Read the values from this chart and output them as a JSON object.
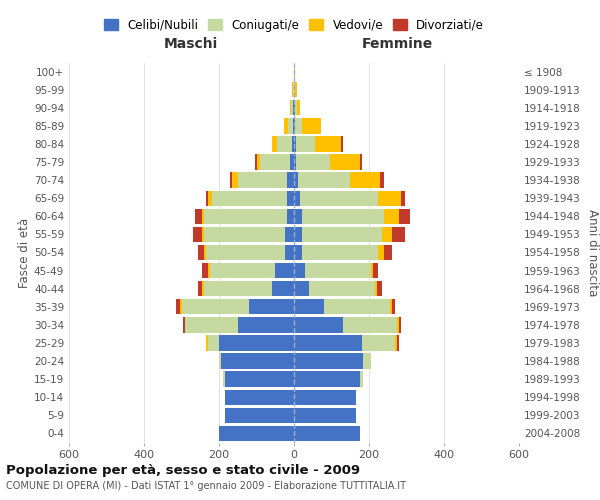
{
  "age_groups": [
    "0-4",
    "5-9",
    "10-14",
    "15-19",
    "20-24",
    "25-29",
    "30-34",
    "35-39",
    "40-44",
    "45-49",
    "50-54",
    "55-59",
    "60-64",
    "65-69",
    "70-74",
    "75-79",
    "80-84",
    "85-89",
    "90-94",
    "95-99",
    "100+"
  ],
  "birth_years": [
    "2004-2008",
    "1999-2003",
    "1994-1998",
    "1989-1993",
    "1984-1988",
    "1979-1983",
    "1974-1978",
    "1969-1973",
    "1964-1968",
    "1959-1963",
    "1954-1958",
    "1949-1953",
    "1944-1948",
    "1939-1943",
    "1934-1938",
    "1929-1933",
    "1924-1928",
    "1919-1923",
    "1914-1918",
    "1909-1913",
    "≤ 1908"
  ],
  "colors": {
    "celibe": "#4472c4",
    "coniugato": "#c5d9a0",
    "vedovo": "#ffc000",
    "divorziato": "#c0392b"
  },
  "maschi": {
    "celibe": [
      200,
      185,
      185,
      185,
      195,
      200,
      150,
      120,
      60,
      50,
      25,
      25,
      20,
      20,
      20,
      10,
      5,
      2,
      2,
      1,
      0
    ],
    "coniugato": [
      0,
      0,
      0,
      5,
      5,
      30,
      140,
      180,
      180,
      175,
      210,
      215,
      220,
      200,
      130,
      80,
      40,
      15,
      5,
      2,
      0
    ],
    "vedovo": [
      0,
      0,
      0,
      0,
      0,
      5,
      0,
      5,
      5,
      5,
      5,
      5,
      5,
      10,
      15,
      10,
      15,
      10,
      5,
      3,
      0
    ],
    "divorziato": [
      0,
      0,
      0,
      0,
      0,
      0,
      5,
      10,
      10,
      15,
      15,
      25,
      20,
      5,
      5,
      5,
      0,
      0,
      0,
      0,
      0
    ]
  },
  "femmine": {
    "nubile": [
      175,
      165,
      165,
      175,
      185,
      180,
      130,
      80,
      40,
      30,
      20,
      20,
      20,
      15,
      10,
      5,
      5,
      2,
      2,
      1,
      0
    ],
    "coniugata": [
      0,
      0,
      0,
      10,
      20,
      90,
      145,
      175,
      175,
      175,
      205,
      215,
      220,
      210,
      140,
      90,
      50,
      20,
      5,
      2,
      0
    ],
    "vedova": [
      0,
      0,
      0,
      0,
      0,
      5,
      5,
      5,
      5,
      5,
      15,
      25,
      40,
      60,
      80,
      80,
      70,
      50,
      10,
      5,
      2
    ],
    "divorziata": [
      0,
      0,
      0,
      0,
      0,
      5,
      5,
      10,
      15,
      15,
      20,
      35,
      30,
      10,
      10,
      5,
      5,
      0,
      0,
      0,
      0
    ]
  },
  "xlim": 600,
  "title": "Popolazione per età, sesso e stato civile - 2009",
  "subtitle": "COMUNE DI OPERA (MI) - Dati ISTAT 1° gennaio 2009 - Elaborazione TUTTITALIA.IT",
  "xlabel_left": "Maschi",
  "xlabel_right": "Femmine",
  "ylabel_left": "Fasce di età",
  "ylabel_right": "Anni di nascita",
  "legend_labels": [
    "Celibi/Nubili",
    "Coniugati/e",
    "Vedovi/e",
    "Divorziati/e"
  ],
  "bg_color": "#ffffff",
  "grid_color": "#cccccc"
}
